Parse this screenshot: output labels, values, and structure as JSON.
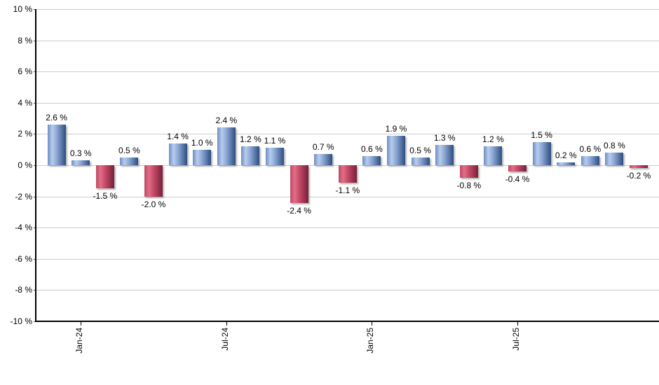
{
  "chart_data": {
    "type": "bar",
    "title": "",
    "xlabel": "",
    "ylabel": "",
    "unit": "%",
    "ylim": [
      -10,
      10
    ],
    "y_tick_step": 2,
    "y_tick_labels": [
      "10 %",
      "8 %",
      "6 %",
      "4 %",
      "2 %",
      "0 %",
      "-2 %",
      "-4 %",
      "-6 %",
      "-8 %",
      "-10 %"
    ],
    "grid": "horizontal-gridlines-on",
    "legend_position": "none",
    "values": [
      2.6,
      0.3,
      -1.5,
      0.5,
      -2.0,
      1.4,
      1.0,
      2.4,
      1.2,
      1.1,
      -2.4,
      0.7,
      -1.1,
      0.6,
      1.9,
      0.5,
      1.3,
      -0.8,
      1.2,
      -0.4,
      1.5,
      0.2,
      0.6,
      0.8,
      -0.2
    ],
    "value_labels": [
      "2.6 %",
      "0.3 %",
      "-1.5 %",
      "0.5 %",
      "-2.0 %",
      "1.4 %",
      "1.0 %",
      "2.4 %",
      "1.2 %",
      "1.1 %",
      "-2.4 %",
      "0.7 %",
      "-1.1 %",
      "0.6 %",
      "1.9 %",
      "0.5 %",
      "1.3 %",
      "-0.8 %",
      "1.2 %",
      "-0.4 %",
      "1.5 %",
      "0.2 %",
      "0.6 %",
      "0.8 %",
      "-0.2 %"
    ],
    "x_ticks": [
      {
        "bar_index": 1,
        "label": "Jan-24"
      },
      {
        "bar_index": 7,
        "label": "Jul-24"
      },
      {
        "bar_index": 13,
        "label": "Jan-25"
      },
      {
        "bar_index": 19,
        "label": "Jul-25"
      }
    ],
    "colors": {
      "positive_bar_gradient": [
        "#6d8dc1",
        "#b8ccee",
        "#8ca7d3",
        "#2d4d81"
      ],
      "negative_bar_gradient": [
        "#bd4a66",
        "#e36d87",
        "#c64a68",
        "#76203a"
      ],
      "gridline": "#cccccc",
      "axis": "#000000",
      "text": "#000000",
      "background": "#ffffff"
    }
  }
}
